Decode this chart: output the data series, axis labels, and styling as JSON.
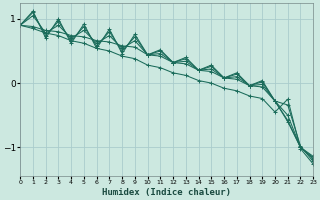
{
  "xlabel": "Humidex (Indice chaleur)",
  "bg_color": "#cce8e0",
  "line_color": "#1a6b5a",
  "grid_color": "#aacccc",
  "x_ticks": [
    0,
    1,
    2,
    3,
    4,
    5,
    6,
    7,
    8,
    9,
    10,
    11,
    12,
    13,
    14,
    15,
    16,
    17,
    18,
    19,
    20,
    21,
    22,
    23
  ],
  "y_ticks": [
    -1,
    0,
    1
  ],
  "xlim": [
    0,
    23
  ],
  "ylim": [
    -1.45,
    1.25
  ],
  "x_data": [
    0,
    1,
    2,
    3,
    4,
    5,
    6,
    7,
    8,
    9,
    10,
    11,
    12,
    13,
    14,
    15,
    16,
    17,
    18,
    19,
    20,
    21,
    22,
    23
  ],
  "lines": [
    [
      0.9,
      0.88,
      0.82,
      0.8,
      0.74,
      0.72,
      0.66,
      0.64,
      0.58,
      0.56,
      0.44,
      0.42,
      0.32,
      0.3,
      0.2,
      0.18,
      0.08,
      0.06,
      -0.04,
      -0.06,
      -0.28,
      -0.34,
      -0.98,
      -1.22
    ],
    [
      0.9,
      1.05,
      0.78,
      0.9,
      0.7,
      0.82,
      0.62,
      0.74,
      0.54,
      0.66,
      0.44,
      0.46,
      0.32,
      0.34,
      0.2,
      0.22,
      0.08,
      0.1,
      -0.04,
      -0.02,
      -0.28,
      -0.6,
      -1.0,
      -1.18
    ],
    [
      0.9,
      1.1,
      0.74,
      0.96,
      0.66,
      0.88,
      0.58,
      0.8,
      0.5,
      0.72,
      0.44,
      0.5,
      0.32,
      0.38,
      0.2,
      0.26,
      0.08,
      0.14,
      -0.04,
      0.02,
      -0.28,
      -0.58,
      -1.0,
      -1.16
    ],
    [
      0.9,
      1.12,
      0.7,
      1.0,
      0.62,
      0.92,
      0.54,
      0.84,
      0.46,
      0.76,
      0.44,
      0.52,
      0.32,
      0.4,
      0.2,
      0.28,
      0.08,
      0.16,
      -0.04,
      0.04,
      -0.28,
      -0.5,
      -1.0,
      -1.14
    ],
    [
      0.9,
      0.85,
      0.78,
      0.74,
      0.66,
      0.62,
      0.54,
      0.5,
      0.42,
      0.38,
      0.28,
      0.24,
      0.16,
      0.12,
      0.04,
      0.0,
      -0.08,
      -0.12,
      -0.2,
      -0.24,
      -0.45,
      -0.25,
      -1.02,
      -1.26
    ]
  ]
}
